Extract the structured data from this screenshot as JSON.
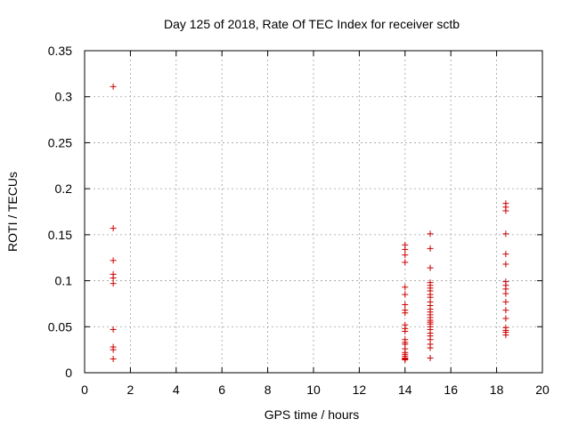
{
  "chart_data": {
    "type": "scatter",
    "title": "Day 125 of 2018, Rate Of TEC Index for receiver sctb",
    "xlabel": "GPS time / hours",
    "ylabel": "ROTI / TECUs",
    "xlim": [
      0,
      20
    ],
    "ylim": [
      0,
      0.35
    ],
    "grid": true,
    "marker": "+",
    "marker_color": "#cc0000",
    "x_ticks": [
      {
        "value": 0,
        "label": "0"
      },
      {
        "value": 2,
        "label": "2"
      },
      {
        "value": 4,
        "label": "4"
      },
      {
        "value": 6,
        "label": "6"
      },
      {
        "value": 8,
        "label": "8"
      },
      {
        "value": 10,
        "label": "10"
      },
      {
        "value": 12,
        "label": "12"
      },
      {
        "value": 14,
        "label": "14"
      },
      {
        "value": 16,
        "label": "16"
      },
      {
        "value": 18,
        "label": "18"
      },
      {
        "value": 20,
        "label": "20"
      }
    ],
    "y_ticks": [
      {
        "value": 0,
        "label": "0"
      },
      {
        "value": 0.05,
        "label": "0.05"
      },
      {
        "value": 0.1,
        "label": "0.1"
      },
      {
        "value": 0.15,
        "label": "0.15"
      },
      {
        "value": 0.2,
        "label": "0.2"
      },
      {
        "value": 0.25,
        "label": "0.25"
      },
      {
        "value": 0.3,
        "label": "0.3"
      },
      {
        "value": 0.35,
        "label": "0.35"
      }
    ],
    "series": [
      {
        "name": "ROTI",
        "points": [
          [
            1.25,
            0.311
          ],
          [
            1.25,
            0.157
          ],
          [
            1.25,
            0.122
          ],
          [
            1.25,
            0.107
          ],
          [
            1.25,
            0.103
          ],
          [
            1.25,
            0.097
          ],
          [
            1.25,
            0.047
          ],
          [
            1.25,
            0.028
          ],
          [
            1.25,
            0.025
          ],
          [
            1.25,
            0.015
          ],
          [
            14.0,
            0.139
          ],
          [
            14.0,
            0.134
          ],
          [
            14.0,
            0.128
          ],
          [
            14.0,
            0.12
          ],
          [
            14.0,
            0.093
          ],
          [
            14.0,
            0.085
          ],
          [
            14.0,
            0.074
          ],
          [
            14.0,
            0.068
          ],
          [
            14.0,
            0.065
          ],
          [
            14.0,
            0.052
          ],
          [
            14.0,
            0.048
          ],
          [
            14.0,
            0.045
          ],
          [
            14.0,
            0.036
          ],
          [
            14.0,
            0.033
          ],
          [
            14.0,
            0.031
          ],
          [
            14.0,
            0.026
          ],
          [
            14.0,
            0.022
          ],
          [
            14.0,
            0.02
          ],
          [
            14.0,
            0.018
          ],
          [
            14.0,
            0.016
          ],
          [
            14.0,
            0.015
          ],
          [
            14.0,
            0.014
          ],
          [
            15.1,
            0.151
          ],
          [
            15.1,
            0.135
          ],
          [
            15.1,
            0.114
          ],
          [
            15.1,
            0.098
          ],
          [
            15.1,
            0.095
          ],
          [
            15.1,
            0.092
          ],
          [
            15.1,
            0.089
          ],
          [
            15.1,
            0.085
          ],
          [
            15.1,
            0.082
          ],
          [
            15.1,
            0.077
          ],
          [
            15.1,
            0.073
          ],
          [
            15.1,
            0.069
          ],
          [
            15.1,
            0.066
          ],
          [
            15.1,
            0.063
          ],
          [
            15.1,
            0.06
          ],
          [
            15.1,
            0.057
          ],
          [
            15.1,
            0.055
          ],
          [
            15.1,
            0.053
          ],
          [
            15.1,
            0.05
          ],
          [
            15.1,
            0.047
          ],
          [
            15.1,
            0.043
          ],
          [
            15.1,
            0.04
          ],
          [
            15.1,
            0.036
          ],
          [
            15.1,
            0.031
          ],
          [
            15.1,
            0.027
          ],
          [
            15.1,
            0.016
          ],
          [
            18.4,
            0.184
          ],
          [
            18.4,
            0.18
          ],
          [
            18.4,
            0.176
          ],
          [
            18.4,
            0.151
          ],
          [
            18.4,
            0.129
          ],
          [
            18.4,
            0.118
          ],
          [
            18.4,
            0.099
          ],
          [
            18.4,
            0.095
          ],
          [
            18.4,
            0.091
          ],
          [
            18.4,
            0.086
          ],
          [
            18.4,
            0.077
          ],
          [
            18.4,
            0.068
          ],
          [
            18.4,
            0.059
          ],
          [
            18.4,
            0.049
          ],
          [
            18.4,
            0.046
          ],
          [
            18.4,
            0.044
          ],
          [
            18.4,
            0.041
          ]
        ]
      }
    ]
  }
}
